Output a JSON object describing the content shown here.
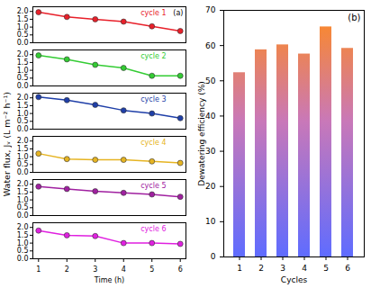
{
  "chart_data": [
    {
      "type": "line",
      "title": "(a)",
      "x_label": "Time (h)",
      "y_label": "Water flux, Jᵥ (L m⁻² h⁻¹)",
      "x": [
        1,
        2,
        3,
        4,
        5,
        6
      ],
      "xlim": [
        0.8,
        6.2
      ],
      "xticks": [
        1,
        2,
        3,
        4,
        5,
        6
      ],
      "ylim": [
        0,
        2.3
      ],
      "yticks": [
        {
          "value": 0,
          "label": "0.0"
        },
        {
          "value": 0.5,
          "label": "0.5"
        },
        {
          "value": 1,
          "label": "1.0"
        },
        {
          "value": 1.5,
          "label": "1.5"
        },
        {
          "value": 2,
          "label": "2.0"
        }
      ],
      "series": [
        {
          "name": "cycle 1",
          "color": "#e8202a",
          "marker": "circle",
          "line_style": "solid",
          "values": [
            1.95,
            1.65,
            1.5,
            1.35,
            1.05,
            0.75
          ]
        },
        {
          "name": "cycle 2",
          "color": "#33cc33",
          "marker": "circle",
          "line_style": "solid",
          "values": [
            1.95,
            1.7,
            1.35,
            1.15,
            0.65,
            0.65
          ]
        },
        {
          "name": "cycle 3",
          "color": "#1f3fa8",
          "marker": "circle",
          "line_style": "solid",
          "values": [
            2.05,
            1.85,
            1.55,
            1.2,
            1.0,
            0.7
          ]
        },
        {
          "name": "cycle 4",
          "color": "#e6b422",
          "marker": "circle",
          "line_style": "solid",
          "values": [
            1.2,
            0.85,
            0.8,
            0.8,
            0.7,
            0.6
          ]
        },
        {
          "name": "cycle 5",
          "color": "#a020a0",
          "marker": "circle",
          "line_style": "solid",
          "values": [
            1.85,
            1.7,
            1.55,
            1.45,
            1.35,
            1.2
          ]
        },
        {
          "name": "cycle 6",
          "color": "#e020e0",
          "marker": "circle",
          "line_style": "solid",
          "values": [
            1.8,
            1.5,
            1.45,
            1.0,
            1.0,
            0.95
          ]
        }
      ]
    },
    {
      "type": "bar",
      "title": "(b)",
      "x_label": "Cycles",
      "y_label": "Dewatering efficiency (%)",
      "categories": [
        "1",
        "2",
        "3",
        "4",
        "5",
        "6"
      ],
      "values": [
        52.3,
        58.8,
        60.2,
        57.6,
        65.3,
        59.2
      ],
      "ylim": [
        0,
        70
      ],
      "yticks": [
        0,
        10,
        20,
        30,
        40,
        50,
        60,
        70
      ]
    }
  ]
}
